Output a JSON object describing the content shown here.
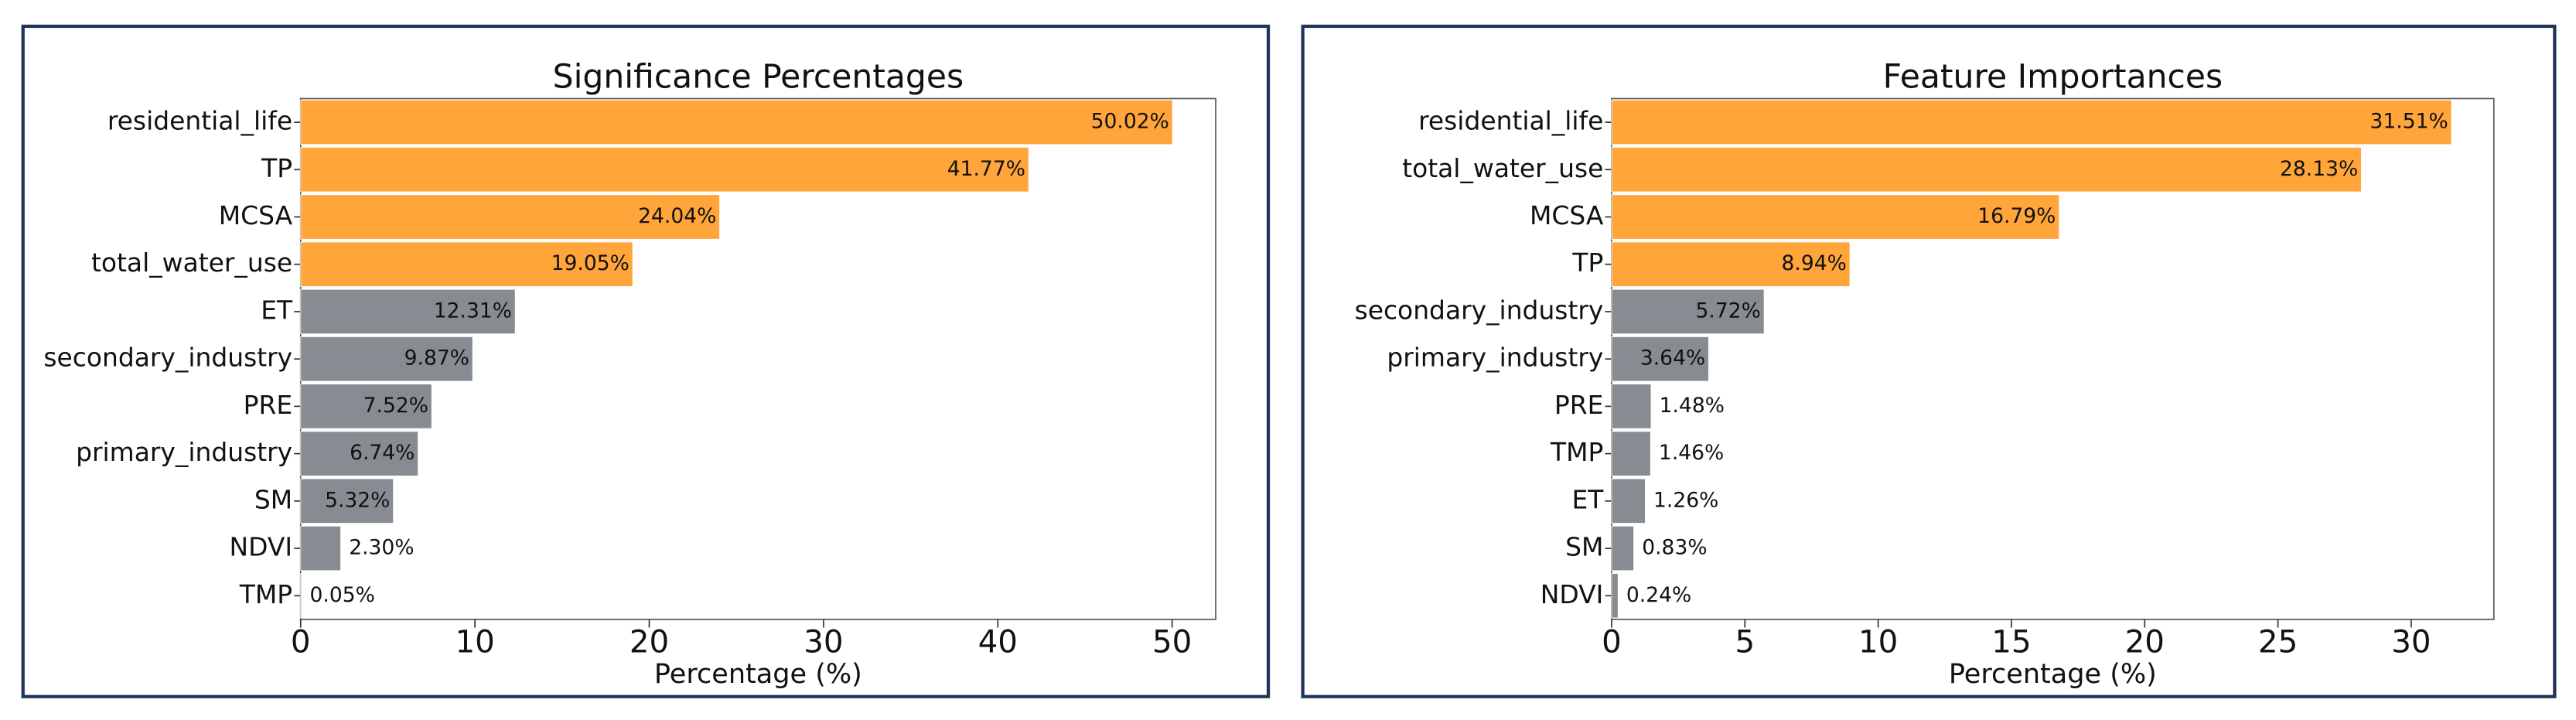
{
  "chart_data": [
    {
      "type": "bar",
      "orientation": "horizontal",
      "title": "Significance Percentages",
      "x_label": "Percentage (%)",
      "categories": [
        "residential_life",
        "TP",
        "MCSA",
        "total_water_use",
        "ET",
        "secondary_industry",
        "PRE",
        "primary_industry",
        "SM",
        "NDVI",
        "TMP"
      ],
      "values": [
        50.02,
        41.77,
        24.04,
        19.05,
        12.31,
        9.87,
        7.52,
        6.74,
        5.32,
        2.3,
        0.05
      ],
      "value_labels": [
        "50.02%",
        "41.77%",
        "24.04%",
        "19.05%",
        "12.31%",
        "9.87%",
        "7.52%",
        "6.74%",
        "5.32%",
        "2.30%",
        "0.05%"
      ],
      "colors": [
        "#ffa53a",
        "#ffa53a",
        "#ffa53a",
        "#ffa53a",
        "#878c92",
        "#878c92",
        "#878c92",
        "#878c92",
        "#878c92",
        "#878c92",
        "#878c92"
      ],
      "xlim": [
        0,
        52.5
      ],
      "xticks": [
        0,
        10,
        20,
        30,
        40,
        50
      ]
    },
    {
      "type": "bar",
      "orientation": "horizontal",
      "title": "Feature Importances",
      "x_label": "Percentage (%)",
      "categories": [
        "residential_life",
        "total_water_use",
        "MCSA",
        "TP",
        "secondary_industry",
        "primary_industry",
        "PRE",
        "TMP",
        "ET",
        "SM",
        "NDVI"
      ],
      "values": [
        31.51,
        28.13,
        16.79,
        8.94,
        5.72,
        3.64,
        1.48,
        1.46,
        1.26,
        0.83,
        0.24
      ],
      "value_labels": [
        "31.51%",
        "28.13%",
        "16.79%",
        "8.94%",
        "5.72%",
        "3.64%",
        "1.48%",
        "1.46%",
        "1.26%",
        "0.83%",
        "0.24%"
      ],
      "colors": [
        "#ffa53a",
        "#ffa53a",
        "#ffa53a",
        "#ffa53a",
        "#878c92",
        "#878c92",
        "#878c92",
        "#878c92",
        "#878c92",
        "#878c92",
        "#878c92"
      ],
      "xlim": [
        0,
        33.1
      ],
      "xticks": [
        0,
        5,
        10,
        15,
        20,
        25,
        30
      ]
    }
  ]
}
